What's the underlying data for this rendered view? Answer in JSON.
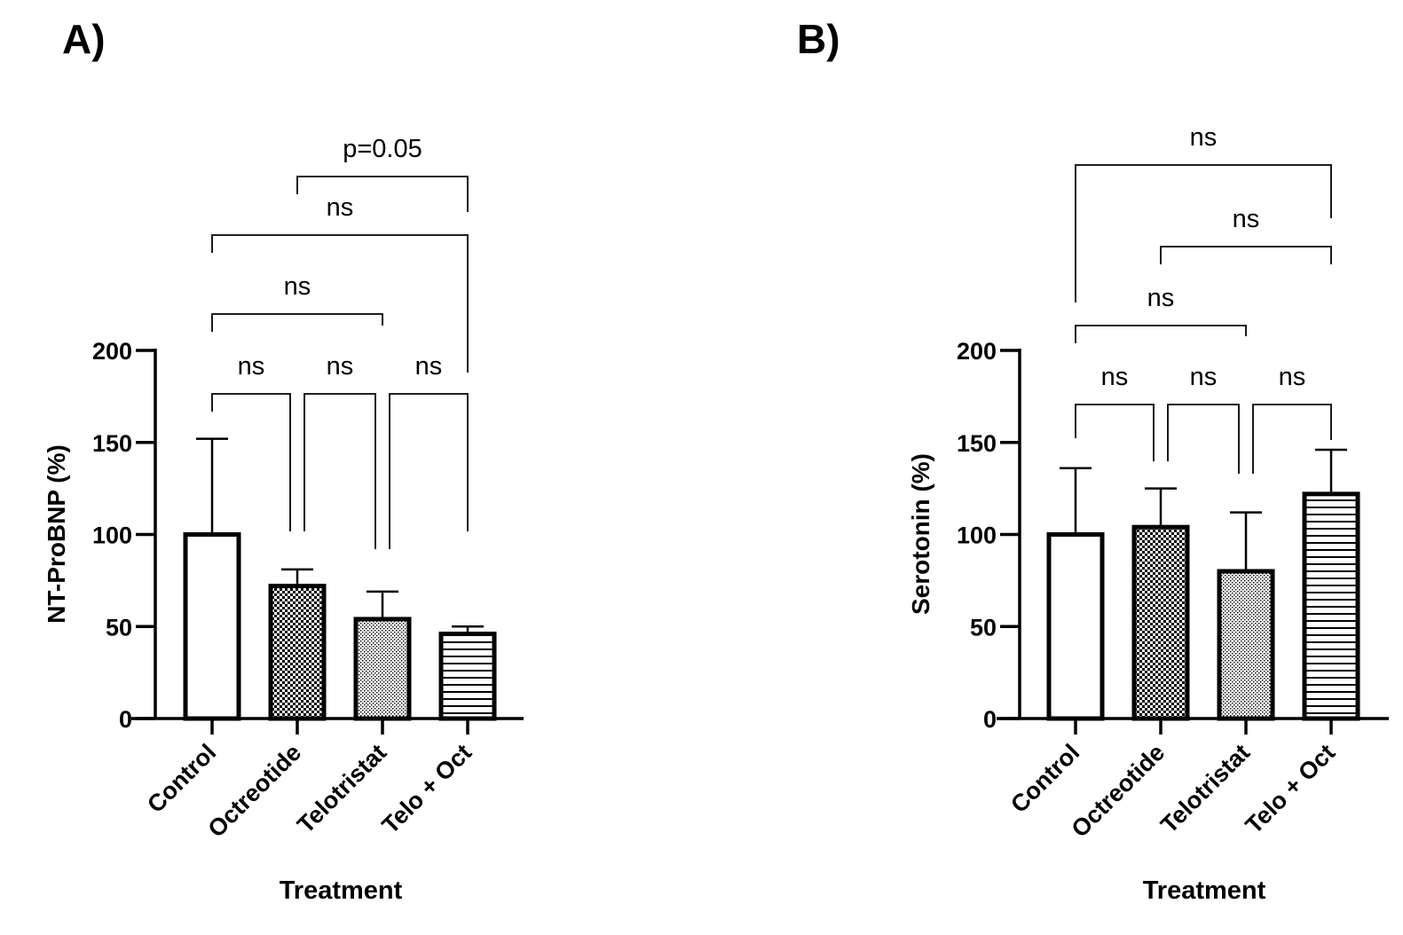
{
  "colors": {
    "ink": "#000000",
    "background": "#ffffff"
  },
  "chart_data": [
    {
      "panel_label": "A)",
      "type": "bar",
      "xlabel": "Treatment",
      "ylabel": "NT-ProBNP (%)",
      "ylim": [
        0,
        200
      ],
      "yticks": [
        "0",
        "50",
        "100",
        "150",
        "200"
      ],
      "categories": [
        "Control",
        "Octreotide",
        "Telotristat",
        "Telo + Oct"
      ],
      "patterns": [
        "none",
        "dense-dots",
        "fine-dots",
        "horizontal-lines"
      ],
      "values": [
        100,
        72,
        54,
        46
      ],
      "errors": [
        52,
        9,
        15,
        4
      ],
      "comparisons": [
        {
          "pair": [
            "Control",
            "Octreotide"
          ],
          "label": "ns"
        },
        {
          "pair": [
            "Octreotide",
            "Telotristat"
          ],
          "label": "ns"
        },
        {
          "pair": [
            "Telotristat",
            "Telo + Oct"
          ],
          "label": "ns"
        },
        {
          "pair": [
            "Control",
            "Telotristat"
          ],
          "label": "ns"
        },
        {
          "pair": [
            "Control",
            "Telo + Oct"
          ],
          "label": "ns"
        },
        {
          "pair": [
            "Octreotide",
            "Telo + Oct"
          ],
          "label": "p=0.05"
        }
      ]
    },
    {
      "panel_label": "B)",
      "type": "bar",
      "xlabel": "Treatment",
      "ylabel": "Serotonin (%)",
      "ylim": [
        0,
        200
      ],
      "yticks": [
        "0",
        "50",
        "100",
        "150",
        "200"
      ],
      "categories": [
        "Control",
        "Octreotide",
        "Telotristat",
        "Telo + Oct"
      ],
      "patterns": [
        "none",
        "dense-dots",
        "fine-dots",
        "horizontal-lines"
      ],
      "values": [
        100,
        104,
        80,
        122
      ],
      "errors": [
        36,
        21,
        32,
        24
      ],
      "comparisons": [
        {
          "pair": [
            "Control",
            "Octreotide"
          ],
          "label": "ns"
        },
        {
          "pair": [
            "Octreotide",
            "Telotristat"
          ],
          "label": "ns"
        },
        {
          "pair": [
            "Telotristat",
            "Telo + Oct"
          ],
          "label": "ns"
        },
        {
          "pair": [
            "Control",
            "Telotristat"
          ],
          "label": "ns"
        },
        {
          "pair": [
            "Octreotide",
            "Telo + Oct"
          ],
          "label": "ns"
        },
        {
          "pair": [
            "Control",
            "Telo + Oct"
          ],
          "label": "ns"
        }
      ]
    }
  ]
}
